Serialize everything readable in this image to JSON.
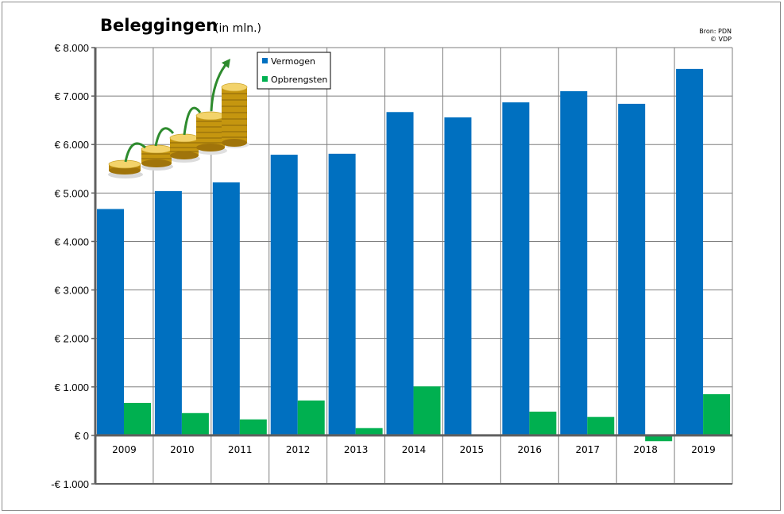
{
  "header": {
    "title": "Beleggingen",
    "subtitle": "(in mln.)",
    "source_line1": "Bron: PDN",
    "source_line2": "© VDP"
  },
  "colors": {
    "vermogen": "#0070c0",
    "opbrengsten": "#00b050",
    "grid": "#7f7f7f"
  },
  "decoration": {
    "icon": "coin-stacks-growth-arrow-icon"
  },
  "chart_data": {
    "type": "bar",
    "categories": [
      "2009",
      "2010",
      "2011",
      "2012",
      "2013",
      "2014",
      "2015",
      "2016",
      "2017",
      "2018",
      "2019"
    ],
    "series": [
      {
        "name": "Vermogen",
        "values": [
          4670,
          5040,
          5220,
          5790,
          5810,
          6670,
          6560,
          6870,
          7100,
          6840,
          7560
        ]
      },
      {
        "name": "Opbrengsten",
        "values": [
          670,
          460,
          330,
          720,
          150,
          1010,
          20,
          490,
          380,
          -120,
          850
        ]
      }
    ],
    "ylim": [
      -1000,
      8000
    ],
    "ytick_values": [
      8000,
      7000,
      6000,
      5000,
      4000,
      3000,
      2000,
      1000,
      0,
      -1000
    ],
    "ytick_labels": [
      "€ 8.000",
      "€ 7.000",
      "€ 6.000",
      "€ 5.000",
      "€ 4.000",
      "€ 3.000",
      "€ 2.000",
      "€ 1.000",
      "€ 0",
      "-€ 1.000"
    ],
    "legend_position": "top-left",
    "grid": true
  }
}
